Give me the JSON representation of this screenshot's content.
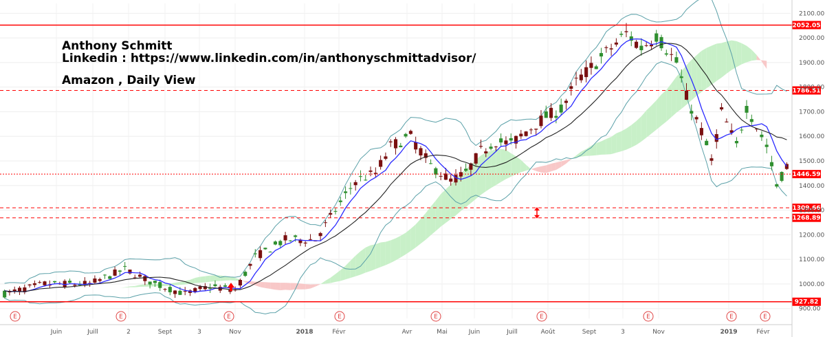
{
  "annotations": {
    "author": "Anthony Schmitt",
    "linkedin": "Linkedin : https://www.linkedin.com/in/anthonyschmittadvisor/",
    "view": "Amazon , Daily View"
  },
  "colors": {
    "up_candle": "#2f8f2f",
    "down_candle": "#7a1010",
    "level_line": "#ff0000",
    "tenkan": "#2a2aff",
    "kijun": "#222222",
    "bollinger": "#5aa0a8",
    "cloud_bull": "#c8f0c8",
    "cloud_bear": "#f8c8c8",
    "event_marker": "#e04545"
  },
  "chart_data": {
    "type": "candlestick",
    "y_ticks": [
      900,
      1000,
      1100,
      1200,
      1300,
      1400,
      1500,
      1600,
      1700,
      1800,
      1900,
      2000,
      2100
    ],
    "y_tick_labels": [
      "900.00",
      "1000.00",
      "1100.00",
      "1200.00",
      "1300.00",
      "1400.00",
      "1500.00",
      "1600.00",
      "1700.00",
      "1800.00",
      "1900.00",
      "2000.00",
      "2100.00"
    ],
    "ylim": [
      860,
      2140
    ],
    "x_labels": [
      "Juin",
      "Juill",
      "2",
      "Sept",
      "3",
      "Nov",
      "2018",
      "Févr",
      "Avr",
      "Mai",
      "Juin",
      "Juill",
      "Août",
      "Sept",
      "3",
      "Nov",
      "2019",
      "Févr"
    ],
    "x_label_pos": [
      0,
      1,
      2,
      3,
      4,
      5,
      6,
      7,
      8,
      9,
      10,
      11,
      12,
      13,
      14,
      15,
      16,
      17
    ],
    "levels": [
      {
        "value": 2052.05,
        "label": "2052.05",
        "style": "solid"
      },
      {
        "value": 1786.51,
        "label": "1786.51",
        "style": "dashed"
      },
      {
        "value": 1446.59,
        "label": "1446.59",
        "style": "dotted"
      },
      {
        "value": 1309.66,
        "label": "1309.66",
        "style": "dashed"
      },
      {
        "value": 1268.89,
        "label": "1268.89",
        "style": "dashed"
      },
      {
        "value": 927.82,
        "label": "927.82",
        "style": "solid"
      }
    ],
    "event_marker_label": "E",
    "event_positions": [
      0,
      1,
      2,
      3,
      4,
      5,
      6,
      7,
      8
    ],
    "price_path": [
      [
        0,
        960
      ],
      [
        8,
        1000
      ],
      [
        17,
        1000
      ],
      [
        24,
        1060
      ],
      [
        30,
        1000
      ],
      [
        36,
        960
      ],
      [
        41,
        990
      ],
      [
        46,
        975
      ],
      [
        50,
        1110
      ],
      [
        56,
        1180
      ],
      [
        62,
        1180
      ],
      [
        66,
        1300
      ],
      [
        70,
        1420
      ],
      [
        74,
        1450
      ],
      [
        77,
        1560
      ],
      [
        81,
        1600
      ],
      [
        85,
        1480
      ],
      [
        89,
        1420
      ],
      [
        92,
        1450
      ],
      [
        95,
        1540
      ],
      [
        98,
        1580
      ],
      [
        101,
        1570
      ],
      [
        104,
        1620
      ],
      [
        108,
        1680
      ],
      [
        111,
        1710
      ],
      [
        114,
        1820
      ],
      [
        118,
        1900
      ],
      [
        121,
        1960
      ],
      [
        124,
        2020
      ],
      [
        127,
        1960
      ],
      [
        130,
        2010
      ],
      [
        134,
        1900
      ],
      [
        136,
        1760
      ],
      [
        139,
        1620
      ],
      [
        141,
        1500
      ],
      [
        143,
        1700
      ],
      [
        146,
        1560
      ],
      [
        148,
        1720
      ],
      [
        150,
        1640
      ],
      [
        152,
        1560
      ],
      [
        154,
        1400
      ],
      [
        156,
        1480
      ]
    ],
    "bar_count": 157,
    "x_date_fraction_note": ""
  }
}
